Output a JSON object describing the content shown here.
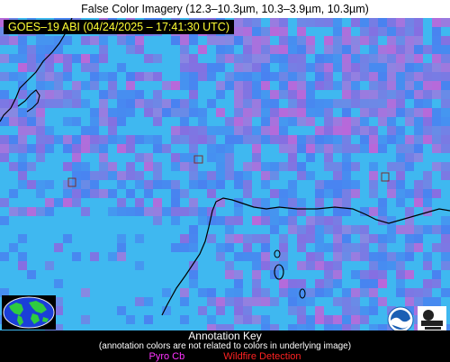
{
  "title": "False Color Imagery (12.3–10.3µm, 10.3–3.9µm, 10.3µm)",
  "sat_label": "GOES–19 ABI (04/24/2025 – 17:41:30 UTC)",
  "annotation_key": {
    "title": "Annotation Key",
    "note": "(annotation colors are not related to colors in underlying image)",
    "items": [
      {
        "label": "Pyro Cb",
        "color": "#ff33ff"
      },
      {
        "label": "Wildfire Detection",
        "color": "#ff2222"
      }
    ]
  },
  "colors": {
    "base_cyan": "#3fb8f0",
    "blue": "#4a7ef0",
    "violet": "#8a6ae0",
    "magenta": "#c063d8",
    "coastline": "#000000",
    "satlabel_text": "#ffff33"
  },
  "logos": [
    "noaa-logo",
    "cimss-logo",
    "globe-inset-icon"
  ]
}
